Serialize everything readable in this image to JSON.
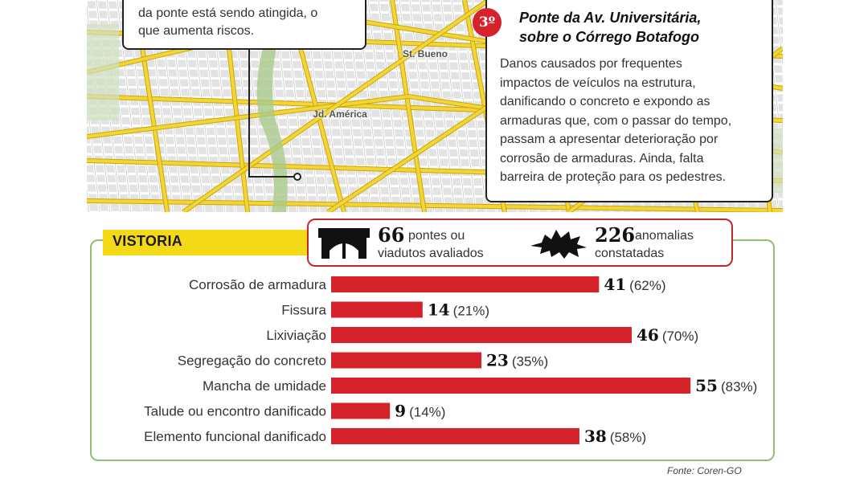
{
  "map": {
    "labels": [
      "St. Bueno",
      "Jd. América"
    ],
    "callout_left": {
      "lines": [
        "da ponte está sendo atingida, o",
        "que aumenta riscos."
      ]
    },
    "callout_right": {
      "badge": "3º",
      "title_lines": [
        "Ponte da Av. Universitária,",
        "sobre o Córrego Botafogo"
      ],
      "body_lines": [
        "Danos causados por frequentes",
        "impactos de veículos na estrutura,",
        "danificando o concreto e expondo as",
        "armaduras que, com o passar do tempo,",
        "passam a apresentar deterioração por",
        "corrosão de armaduras. Ainda, falta",
        "barreira de proteção para os pedestres."
      ]
    }
  },
  "section": {
    "title": "VISTORIA"
  },
  "summary": {
    "bridges": {
      "icon": "bridge-icon",
      "number": "66",
      "text_lines": [
        "pontes ou",
        "viadutos avaliados"
      ]
    },
    "anomalies": {
      "icon": "crack-icon",
      "number": "226",
      "text_lines": [
        "anomalias",
        "constatadas"
      ]
    }
  },
  "chart_data": {
    "type": "bar",
    "orientation": "horizontal",
    "categories": [
      "Corrosão de armadura",
      "Fissura",
      "Lixiviação",
      "Segregação do concreto",
      "Mancha de umidade",
      "Talude ou encontro danificado",
      "Elemento funcional danificado"
    ],
    "values": [
      41,
      14,
      46,
      23,
      55,
      9,
      38
    ],
    "percent_labels": [
      "(62%)",
      "(21%)",
      "(70%)",
      "(35%)",
      "(83%)",
      "(14%)",
      "(58%)"
    ],
    "title": "",
    "xlabel": "",
    "ylabel": "",
    "bar_color": "#d6222a"
  },
  "source": "Fonte: Coren-GO",
  "colors": {
    "accent_red": "#d6222a",
    "yellow": "#f5d816",
    "green_border": "#8fbf6f"
  }
}
